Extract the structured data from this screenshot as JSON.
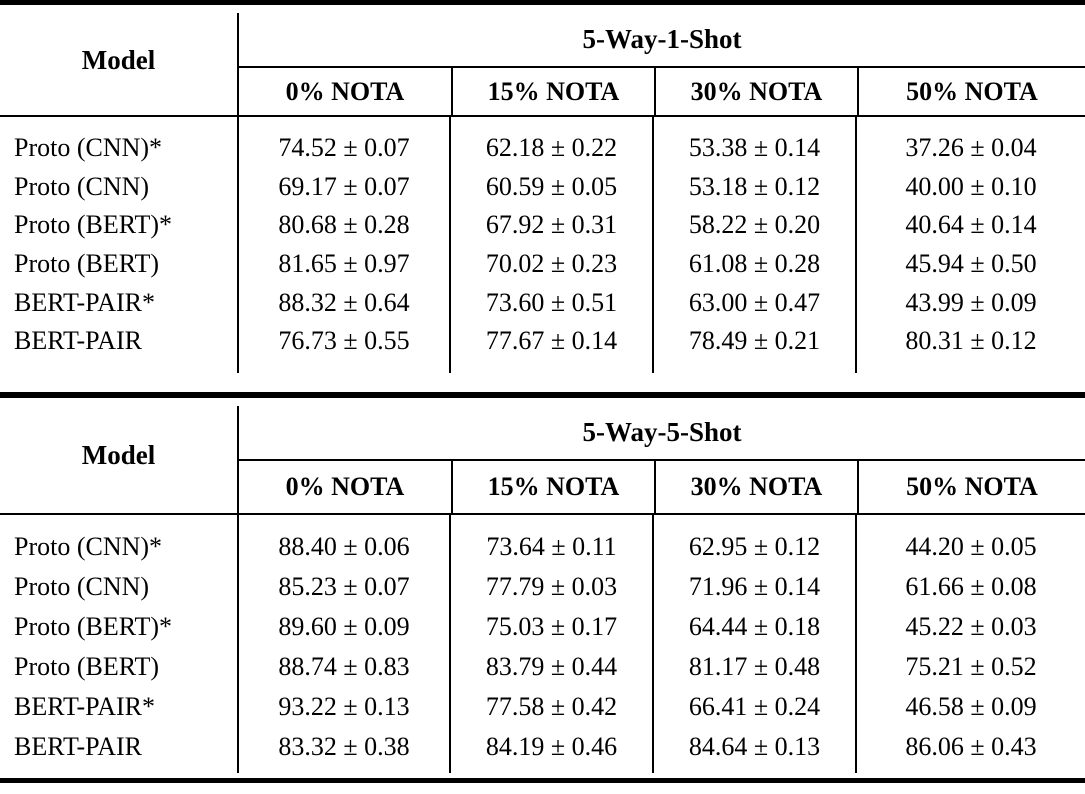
{
  "page": {
    "background": "#ffffff",
    "text_color": "#000000",
    "rule_color": "#000000"
  },
  "tables": [
    {
      "model_header": "Model",
      "group_header": "5-Way-1-Shot",
      "columns": [
        "0% NOTA",
        "15% NOTA",
        "30% NOTA",
        "50% NOTA"
      ],
      "rows": [
        {
          "model": "Proto (CNN)*",
          "values": [
            "74.52 ± 0.07",
            "62.18 ± 0.22",
            "53.38 ± 0.14",
            "37.26 ± 0.04"
          ]
        },
        {
          "model": "Proto (CNN)",
          "values": [
            "69.17 ± 0.07",
            "60.59 ± 0.05",
            "53.18 ± 0.12",
            "40.00 ± 0.10"
          ]
        },
        {
          "model": "Proto (BERT)*",
          "values": [
            "80.68 ± 0.28",
            "67.92 ± 0.31",
            "58.22 ± 0.20",
            "40.64 ± 0.14"
          ]
        },
        {
          "model": "Proto (BERT)",
          "values": [
            "81.65 ± 0.97",
            "70.02 ± 0.23",
            "61.08 ± 0.28",
            "45.94 ± 0.50"
          ]
        },
        {
          "model": "BERT-PAIR*",
          "values": [
            "88.32 ± 0.64",
            "73.60 ± 0.51",
            "63.00 ± 0.47",
            "43.99 ± 0.09"
          ]
        },
        {
          "model": "BERT-PAIR",
          "values": [
            "76.73 ± 0.55",
            "77.67 ± 0.14",
            "78.49 ± 0.21",
            "80.31 ± 0.12"
          ]
        }
      ]
    },
    {
      "model_header": "Model",
      "group_header": "5-Way-5-Shot",
      "columns": [
        "0% NOTA",
        "15% NOTA",
        "30% NOTA",
        "50% NOTA"
      ],
      "rows": [
        {
          "model": "Proto (CNN)*",
          "values": [
            "88.40 ± 0.06",
            "73.64 ± 0.11",
            "62.95 ± 0.12",
            "44.20 ± 0.05"
          ]
        },
        {
          "model": "Proto (CNN)",
          "values": [
            "85.23 ± 0.07",
            "77.79 ± 0.03",
            "71.96 ± 0.14",
            "61.66 ± 0.08"
          ]
        },
        {
          "model": "Proto (BERT)*",
          "values": [
            "89.60 ± 0.09",
            "75.03 ± 0.17",
            "64.44 ± 0.18",
            "45.22 ± 0.03"
          ]
        },
        {
          "model": "Proto (BERT)",
          "values": [
            "88.74 ± 0.83",
            "83.79 ± 0.44",
            "81.17 ± 0.48",
            "75.21 ± 0.52"
          ]
        },
        {
          "model": "BERT-PAIR*",
          "values": [
            "93.22 ± 0.13",
            "77.58 ± 0.42",
            "66.41 ± 0.24",
            "46.58 ± 0.09"
          ]
        },
        {
          "model": "BERT-PAIR",
          "values": [
            "83.32 ± 0.38",
            "84.19 ± 0.46",
            "84.64 ± 0.13",
            "86.06 ± 0.43"
          ]
        }
      ]
    }
  ]
}
